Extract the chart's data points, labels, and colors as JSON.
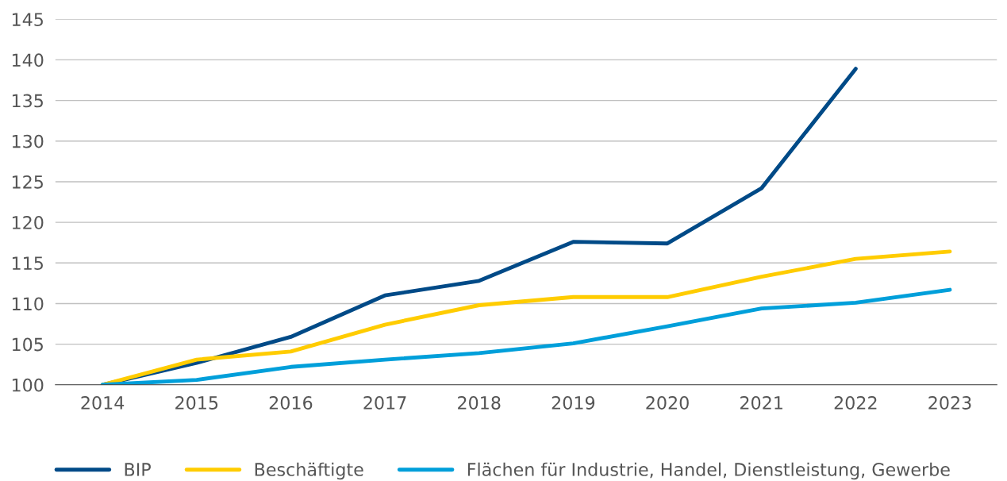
{
  "chart_data": {
    "type": "line",
    "categories": [
      "2014",
      "2015",
      "2016",
      "2017",
      "2018",
      "2019",
      "2020",
      "2021",
      "2022",
      "2023"
    ],
    "series": [
      {
        "name": "BIP",
        "color": "#004a87",
        "values": [
          100,
          102.7,
          105.9,
          111.0,
          112.8,
          117.6,
          117.4,
          124.2,
          138.9,
          null
        ]
      },
      {
        "name": "Beschäftigte",
        "color": "#ffcc00",
        "values": [
          100,
          103.1,
          104.1,
          107.4,
          109.8,
          110.8,
          110.8,
          113.3,
          115.5,
          116.4
        ]
      },
      {
        "name": "Flächen für Industrie, Handel, Dienstleistung, Gewerbe",
        "color": "#009fda",
        "values": [
          100,
          100.6,
          102.2,
          103.1,
          103.9,
          105.1,
          107.2,
          109.4,
          110.1,
          111.7
        ]
      }
    ],
    "ylim": [
      100,
      145
    ],
    "yticks": [
      100,
      105,
      110,
      115,
      120,
      125,
      130,
      135,
      140,
      145
    ],
    "grid": "y",
    "legend": "bottom",
    "marker": "none",
    "line_style": "solid"
  }
}
